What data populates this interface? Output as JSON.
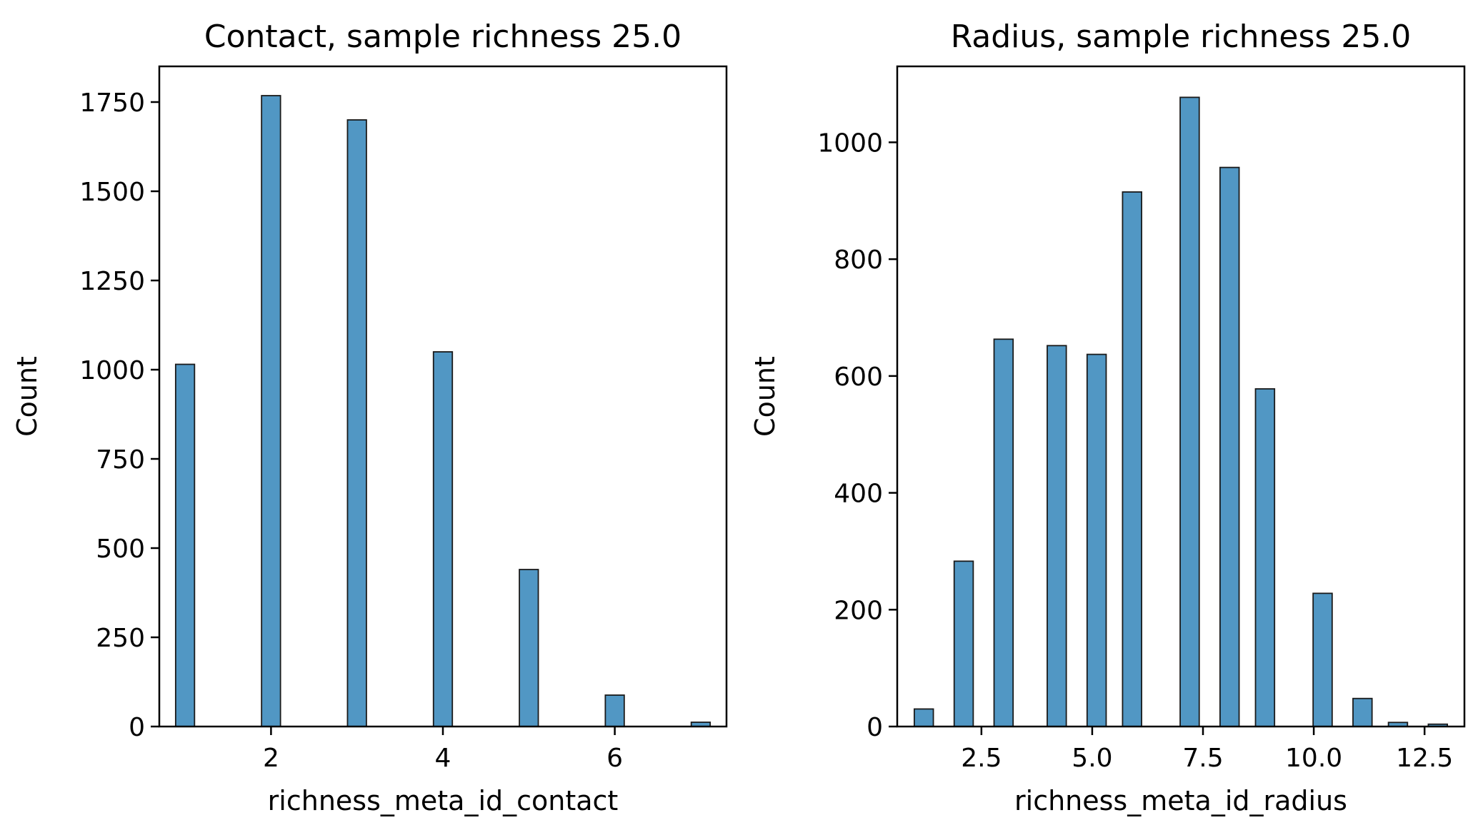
{
  "chart_data": [
    {
      "type": "bar",
      "title": "Contact, sample richness 25.0",
      "xlabel": "richness_meta_id_contact",
      "ylabel": "Count",
      "xlim": [
        0.7,
        7.3
      ],
      "ylim": [
        0,
        1850
      ],
      "x_ticks": [
        2,
        4,
        6
      ],
      "x_tick_labels": [
        "2",
        "4",
        "6"
      ],
      "y_ticks": [
        0,
        250,
        500,
        750,
        1000,
        1250,
        1500,
        1750
      ],
      "y_tick_labels": [
        "0",
        "250",
        "500",
        "750",
        "1000",
        "1250",
        "1500",
        "1750"
      ],
      "bar_width": 0.22,
      "bars": [
        {
          "x": 1,
          "count": 1015
        },
        {
          "x": 2,
          "count": 1768
        },
        {
          "x": 3,
          "count": 1700
        },
        {
          "x": 4,
          "count": 1050
        },
        {
          "x": 5,
          "count": 440
        },
        {
          "x": 6,
          "count": 88
        },
        {
          "x": 7,
          "count": 12
        }
      ],
      "grid": false,
      "color": "#5197c4"
    },
    {
      "type": "bar",
      "title": "Radius, sample richness 25.0",
      "xlabel": "richness_meta_id_radius",
      "ylabel": "Count",
      "xlim": [
        0.6,
        13.4
      ],
      "ylim": [
        0,
        1130
      ],
      "x_ticks": [
        2.5,
        5.0,
        7.5,
        10.0,
        12.5
      ],
      "x_tick_labels": [
        "2.5",
        "5.0",
        "7.5",
        "10.0",
        "12.5"
      ],
      "y_ticks": [
        0,
        200,
        400,
        600,
        800,
        1000
      ],
      "y_tick_labels": [
        "0",
        "200",
        "400",
        "600",
        "800",
        "1000"
      ],
      "bar_width": 0.43,
      "bars": [
        {
          "x": 1.2,
          "count": 30
        },
        {
          "x": 2.1,
          "count": 283
        },
        {
          "x": 3.0,
          "count": 663
        },
        {
          "x": 4.2,
          "count": 652
        },
        {
          "x": 5.1,
          "count": 637
        },
        {
          "x": 5.9,
          "count": 915
        },
        {
          "x": 7.2,
          "count": 1077
        },
        {
          "x": 8.1,
          "count": 957
        },
        {
          "x": 8.9,
          "count": 578
        },
        {
          "x": 10.2,
          "count": 228
        },
        {
          "x": 11.1,
          "count": 48
        },
        {
          "x": 11.9,
          "count": 7
        },
        {
          "x": 12.8,
          "count": 4
        }
      ],
      "grid": false,
      "color": "#5197c4"
    }
  ]
}
